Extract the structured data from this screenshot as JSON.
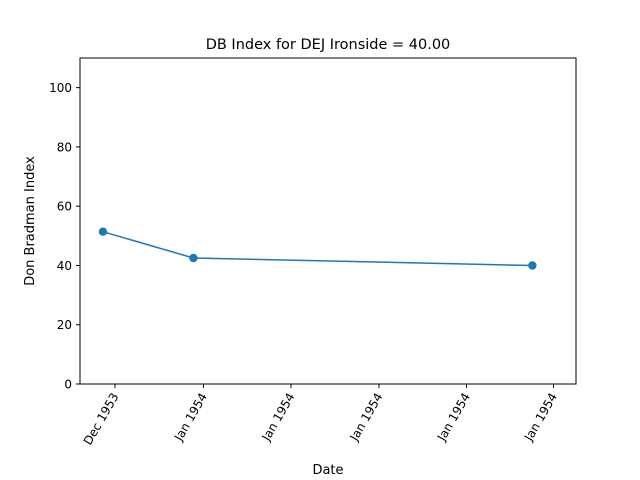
{
  "chart_data": {
    "type": "line",
    "title": "DB Index for DEJ Ironside = 40.00",
    "xlabel": "Date",
    "ylabel": "Don Bradman Index",
    "x_tick_labels": [
      "Dec 1953",
      "Jan 1954",
      "Jan 1954",
      "Jan 1954",
      "Jan 1954",
      "Jan 1954"
    ],
    "y_ticks": [
      0,
      20,
      40,
      60,
      80,
      100
    ],
    "ylim": [
      0,
      110
    ],
    "grid": false,
    "legend": "none",
    "series": [
      {
        "x": [
          "1953-12-24",
          "1954-01-01",
          "1954-01-31"
        ],
        "values": [
          51.4,
          42.5,
          40.0
        ],
        "color": "#1f77b4",
        "marker": "circle"
      }
    ]
  }
}
